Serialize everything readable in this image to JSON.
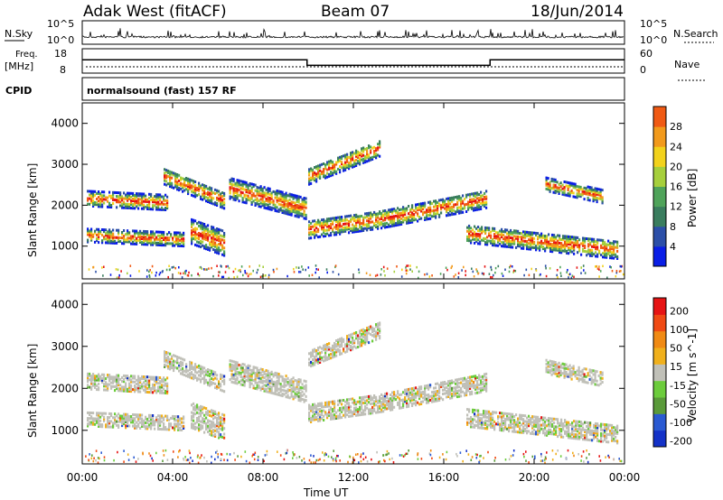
{
  "header": {
    "station": "Adak West (fitACF)",
    "beam": "Beam 07",
    "date": "18/Jun/2014"
  },
  "top_panels": {
    "nsky_label": "N.Sky",
    "nsky_ticks": [
      "10^5",
      "10^0"
    ],
    "nsearch_label": "N.Search",
    "nsearch_ticks": [
      "10^5",
      "10^0"
    ],
    "freq_label": "Freq.",
    "freq_unit": "[MHz]",
    "freq_ticks": [
      "18",
      "8"
    ],
    "nave_label": "Nave",
    "nave_ticks": [
      "60",
      "0"
    ],
    "cpid_label": "CPID",
    "cpid_text": "normalsound (fast) 157 RF"
  },
  "colors": {
    "power": [
      "#0a1ee6",
      "#2c4fa8",
      "#3a7d5e",
      "#4fa35a",
      "#a6cf3c",
      "#f2d21c",
      "#f29a1c",
      "#f05a14",
      "#e61414"
    ],
    "velocity": [
      "#1432c8",
      "#2a5ad2",
      "#5a9a3a",
      "#6ccc3c",
      "#c0c0b8",
      "#f0b01c",
      "#f08a14",
      "#f04a14",
      "#e61414"
    ],
    "ground_scatter": "#b8b8b0"
  },
  "chart_data": [
    {
      "type": "line",
      "title": "",
      "xlabel": "",
      "ylabel": "N.Sky",
      "note": "sky noise (log scale, top panel)",
      "x_range_hours": [
        0,
        24
      ],
      "ylim": [
        1,
        100000
      ]
    },
    {
      "type": "line",
      "title": "",
      "xlabel": "",
      "ylabel": "Freq. [MHz]",
      "series": [
        {
          "name": "Freq.",
          "x": [
            0,
            9.95,
            9.95,
            18.05,
            18.05,
            24
          ],
          "values": [
            13.5,
            13.5,
            11.2,
            11.2,
            13.5,
            13.5
          ]
        }
      ],
      "ylim": [
        8,
        18
      ]
    },
    {
      "type": "heatmap",
      "title": "",
      "xlabel": "",
      "ylabel": "Slant Range [km]",
      "ylim": [
        200,
        4500
      ],
      "y_ticks": [
        1000,
        2000,
        3000,
        4000
      ],
      "colorbar": {
        "label": "Power [dB]",
        "ticks": [
          4,
          8,
          12,
          16,
          20,
          24,
          28
        ],
        "range": [
          0,
          30
        ]
      }
    },
    {
      "type": "heatmap",
      "title": "",
      "xlabel": "Time UT",
      "ylabel": "Slant Range [km]",
      "ylim": [
        200,
        4500
      ],
      "y_ticks": [
        1000,
        2000,
        3000,
        4000
      ],
      "x_ticks": [
        "00:00",
        "04:00",
        "08:00",
        "12:00",
        "16:00",
        "20:00",
        "00:00"
      ],
      "colorbar": {
        "label": "Velocity [m s^-1]",
        "ticks": [
          200,
          100,
          50,
          15,
          -15,
          -50,
          -100,
          -200
        ]
      }
    }
  ]
}
